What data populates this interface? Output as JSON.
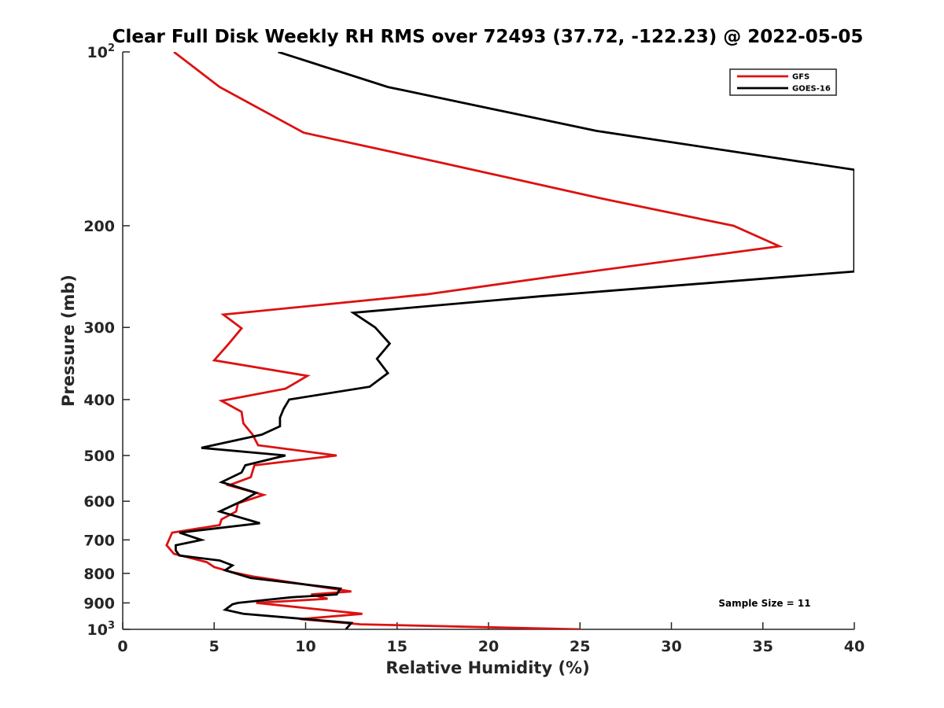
{
  "chart_data": {
    "type": "line",
    "title": "Clear Full Disk Weekly RH RMS over 72493 (37.72, -122.23) @ 2022-05-05",
    "xlabel": "Relative Humidity (%)",
    "ylabel": "Pressure (mb)",
    "xlim": [
      0,
      40
    ],
    "ylim": [
      100,
      1000
    ],
    "y_scale": "log",
    "y_reversed": true,
    "grid": false,
    "legend_position": "top-right",
    "x_ticks": [
      "0",
      "5",
      "10",
      "15",
      "20",
      "25",
      "30",
      "35",
      "40"
    ],
    "y_ticks": [
      {
        "value": 100,
        "base": "10",
        "exp": "2"
      },
      {
        "value": 200,
        "label": "200"
      },
      {
        "value": 300,
        "label": "300"
      },
      {
        "value": 400,
        "label": "400"
      },
      {
        "value": 500,
        "label": "500"
      },
      {
        "value": 600,
        "label": "600"
      },
      {
        "value": 700,
        "label": "700"
      },
      {
        "value": 800,
        "label": "800"
      },
      {
        "value": 900,
        "label": "900"
      },
      {
        "value": 1000,
        "base": "10",
        "exp": "3"
      }
    ],
    "series": [
      {
        "name": "GFS",
        "color": "#dd1111",
        "x": [
          2.8,
          5.3,
          9.9,
          17.2,
          26.4,
          33.4,
          35.9,
          23.5,
          16.6,
          5.5,
          6.5,
          5.8,
          5.0,
          10.1,
          8.9,
          5.4,
          6.5,
          6.6,
          7.1,
          7.4,
          11.7,
          7.2,
          7.0,
          5.8,
          7.7,
          6.3,
          6.2,
          5.4,
          5.3,
          2.7,
          2.4,
          2.8,
          4.6,
          5.0,
          5.9,
          7.1,
          12.5,
          10.3,
          11.2,
          7.3,
          13.1,
          9.7,
          13.0,
          25.0
        ],
        "y": [
          100,
          115,
          138,
          155,
          180,
          200,
          217,
          245,
          263,
          285,
          301,
          320,
          342,
          364,
          383,
          402,
          420,
          440,
          460,
          480,
          500,
          520,
          545,
          563,
          585,
          605,
          625,
          645,
          660,
          680,
          715,
          740,
          765,
          780,
          795,
          810,
          860,
          870,
          885,
          900,
          940,
          960,
          980,
          1000
        ]
      },
      {
        "name": "GOES-16",
        "color": "#000000",
        "x": [
          8.5,
          14.5,
          25.9,
          40.0,
          40.0,
          22.8,
          12.6,
          13.8,
          14.6,
          13.9,
          14.5,
          13.5,
          9.1,
          8.8,
          8.6,
          8.6,
          7.6,
          4.3,
          8.9,
          6.7,
          6.5,
          5.4,
          7.3,
          6.5,
          5.3,
          7.5,
          3.1,
          4.3,
          2.9,
          2.9,
          3.1,
          5.3,
          6.0,
          5.6,
          7.0,
          11.9,
          11.7,
          9.2,
          6.3,
          6.0,
          5.6,
          6.6,
          12.5,
          12.2
        ],
        "y": [
          100,
          115,
          137,
          160,
          240,
          265,
          283,
          300,
          320,
          340,
          360,
          380,
          400,
          415,
          430,
          445,
          460,
          485,
          500,
          520,
          535,
          556,
          580,
          600,
          625,
          655,
          680,
          700,
          715,
          730,
          745,
          760,
          775,
          790,
          815,
          850,
          870,
          880,
          900,
          905,
          925,
          940,
          975,
          1000
        ]
      }
    ],
    "legend": [
      {
        "label": "GFS",
        "color": "#dd1111"
      },
      {
        "label": "GOES-16",
        "color": "#000000"
      }
    ],
    "annotation": "Sample Size = 11"
  }
}
